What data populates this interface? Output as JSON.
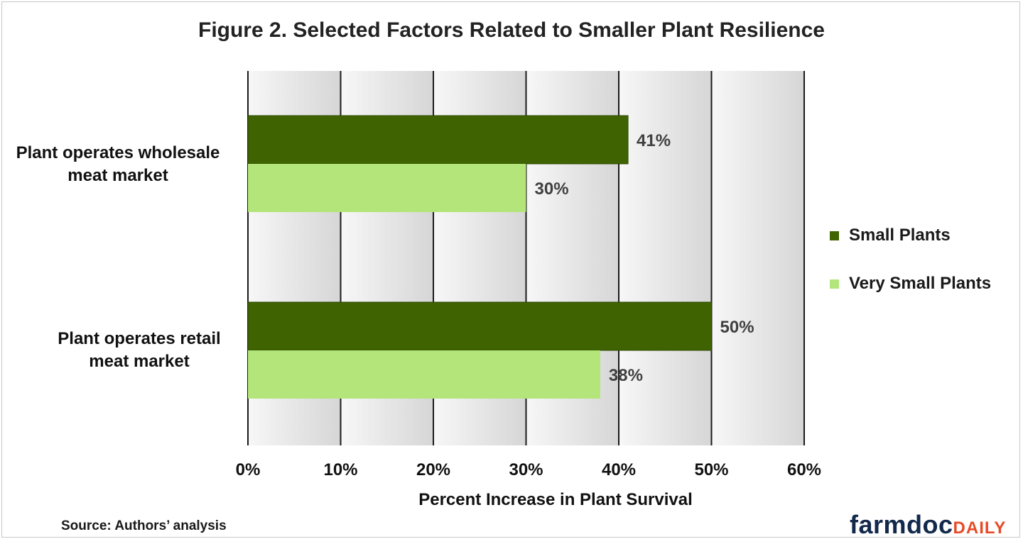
{
  "chart_data": {
    "type": "bar",
    "orientation": "horizontal",
    "title": "Figure 2. Selected Factors Related to Smaller Plant Resilience",
    "categories": [
      [
        "Plant operates wholesale",
        "meat market"
      ],
      [
        "Plant operates retail",
        "meat market"
      ]
    ],
    "series": [
      {
        "name": "Small Plants",
        "color": "#3f6300",
        "values": [
          41,
          50
        ],
        "labels": [
          "41%",
          "50%"
        ]
      },
      {
        "name": "Very Small Plants",
        "color": "#b3e57a",
        "values": [
          30,
          38
        ],
        "labels": [
          "30%",
          "38%"
        ]
      }
    ],
    "xlabel": "Percent Increase in Plant Survival",
    "xlim": [
      0,
      60
    ],
    "xticks": [
      0,
      10,
      20,
      30,
      40,
      50,
      60
    ],
    "xtick_labels": [
      "0%",
      "10%",
      "20%",
      "30%",
      "40%",
      "50%",
      "60%"
    ],
    "grid": true,
    "legend_position": "right"
  },
  "footer": {
    "source": "Source: Authors’ analysis",
    "brand_main": "farmdoc",
    "brand_accent": "DAILY"
  }
}
